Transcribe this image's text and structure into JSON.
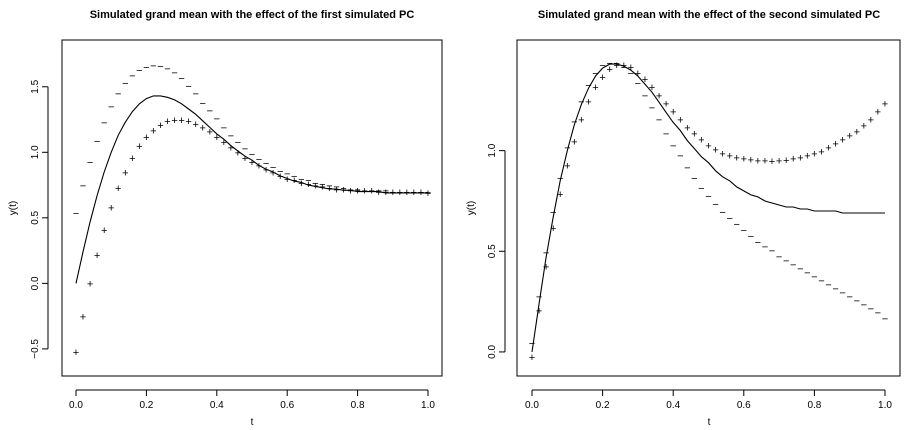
{
  "chart_data": [
    {
      "type": "line",
      "title": "Simulated grand mean with the effect of the first simulated PC",
      "xlabel": "t",
      "ylabel": "y(t)",
      "xlim": [
        0,
        1
      ],
      "ylim": [
        -0.6,
        1.75
      ],
      "xticks": [
        0,
        0.2,
        0.4,
        0.6,
        0.8,
        1.0
      ],
      "xtick_labels": [
        "0.0",
        "0.2",
        "0.4",
        "0.6",
        "0.8",
        "1.0"
      ],
      "yticks": [
        -0.5,
        0,
        0.5,
        1.0,
        1.5
      ],
      "ytick_labels": [
        "−0.5",
        "0.0",
        "0.5",
        "1.0",
        "1.5"
      ],
      "series": [
        {
          "role": "mean",
          "style": "line",
          "x": [
            0,
            0.02,
            0.04,
            0.06,
            0.08,
            0.1,
            0.12,
            0.14,
            0.16,
            0.18,
            0.2,
            0.22,
            0.24,
            0.26,
            0.28,
            0.3,
            0.32,
            0.34,
            0.36,
            0.38,
            0.4,
            0.42,
            0.44,
            0.46,
            0.48,
            0.5,
            0.52,
            0.54,
            0.56,
            0.58,
            0.6,
            0.62,
            0.64,
            0.66,
            0.68,
            0.7,
            0.72,
            0.74,
            0.76,
            0.78,
            0.8,
            0.82,
            0.84,
            0.86,
            0.88,
            0.9,
            0.92,
            0.94,
            0.96,
            0.98,
            1.0
          ],
          "y": [
            0.0,
            0.24,
            0.47,
            0.67,
            0.85,
            1.0,
            1.13,
            1.23,
            1.31,
            1.37,
            1.41,
            1.43,
            1.43,
            1.42,
            1.4,
            1.37,
            1.33,
            1.29,
            1.24,
            1.19,
            1.14,
            1.1,
            1.05,
            1.01,
            0.97,
            0.94,
            0.9,
            0.87,
            0.85,
            0.82,
            0.8,
            0.78,
            0.77,
            0.75,
            0.74,
            0.73,
            0.72,
            0.72,
            0.71,
            0.71,
            0.7,
            0.7,
            0.7,
            0.7,
            0.69,
            0.69,
            0.69,
            0.69,
            0.69,
            0.69,
            0.69
          ]
        },
        {
          "role": "mean-minus",
          "style": "marker",
          "marker_text": "−",
          "x": [
            0,
            0.02,
            0.04,
            0.06,
            0.08,
            0.1,
            0.12,
            0.14,
            0.16,
            0.18,
            0.2,
            0.22,
            0.24,
            0.26,
            0.28,
            0.3,
            0.32,
            0.34,
            0.36,
            0.38,
            0.4,
            0.42,
            0.44,
            0.46,
            0.48,
            0.5,
            0.52,
            0.54,
            0.56,
            0.58,
            0.6,
            0.62,
            0.64,
            0.66,
            0.68,
            0.7,
            0.72,
            0.74,
            0.76,
            0.78,
            0.8,
            0.82,
            0.84,
            0.86,
            0.88,
            0.9,
            0.92,
            0.94,
            0.96,
            0.98,
            1.0
          ],
          "y": [
            0.53,
            0.74,
            0.92,
            1.08,
            1.22,
            1.34,
            1.44,
            1.52,
            1.58,
            1.62,
            1.645,
            1.655,
            1.65,
            1.63,
            1.6,
            1.56,
            1.5,
            1.44,
            1.37,
            1.31,
            1.25,
            1.18,
            1.12,
            1.07,
            1.02,
            0.98,
            0.94,
            0.91,
            0.88,
            0.85,
            0.83,
            0.81,
            0.79,
            0.78,
            0.76,
            0.75,
            0.74,
            0.73,
            0.72,
            0.71,
            0.71,
            0.7,
            0.7,
            0.7,
            0.7,
            0.69,
            0.69,
            0.69,
            0.69,
            0.69,
            0.69
          ]
        },
        {
          "role": "mean-plus",
          "style": "marker",
          "marker_text": "+",
          "x": [
            0,
            0.02,
            0.04,
            0.06,
            0.08,
            0.1,
            0.12,
            0.14,
            0.16,
            0.18,
            0.2,
            0.22,
            0.24,
            0.26,
            0.28,
            0.3,
            0.32,
            0.34,
            0.36,
            0.38,
            0.4,
            0.42,
            0.44,
            0.46,
            0.48,
            0.5,
            0.52,
            0.54,
            0.56,
            0.58,
            0.6,
            0.62,
            0.64,
            0.66,
            0.68,
            0.7,
            0.72,
            0.74,
            0.76,
            0.78,
            0.8,
            0.82,
            0.84,
            0.86,
            0.88,
            0.9,
            0.92,
            0.94,
            0.96,
            0.98,
            1.0
          ],
          "y": [
            -0.53,
            -0.26,
            -0.01,
            0.21,
            0.4,
            0.57,
            0.72,
            0.84,
            0.95,
            1.04,
            1.11,
            1.16,
            1.2,
            1.23,
            1.24,
            1.24,
            1.23,
            1.21,
            1.18,
            1.15,
            1.11,
            1.07,
            1.03,
            0.99,
            0.95,
            0.92,
            0.89,
            0.86,
            0.84,
            0.81,
            0.79,
            0.78,
            0.76,
            0.75,
            0.74,
            0.73,
            0.72,
            0.71,
            0.71,
            0.7,
            0.7,
            0.7,
            0.7,
            0.69,
            0.69,
            0.69,
            0.69,
            0.69,
            0.69,
            0.69,
            0.68
          ]
        }
      ]
    },
    {
      "type": "line",
      "title": "Simulated grand mean with the effect of the second simulated PC",
      "xlabel": "t",
      "ylabel": "y(t)",
      "xlim": [
        0,
        1
      ],
      "ylim": [
        -0.05,
        1.48
      ],
      "xticks": [
        0,
        0.2,
        0.4,
        0.6,
        0.8,
        1.0
      ],
      "xtick_labels": [
        "0.0",
        "0.2",
        "0.4",
        "0.6",
        "0.8",
        "1.0"
      ],
      "yticks": [
        0,
        0.5,
        1.0
      ],
      "ytick_labels": [
        "0.0",
        "0.5",
        "1.0"
      ],
      "series": [
        {
          "role": "mean",
          "style": "line",
          "x": [
            0,
            0.02,
            0.04,
            0.06,
            0.08,
            0.1,
            0.12,
            0.14,
            0.16,
            0.18,
            0.2,
            0.22,
            0.24,
            0.26,
            0.28,
            0.3,
            0.32,
            0.34,
            0.36,
            0.38,
            0.4,
            0.42,
            0.44,
            0.46,
            0.48,
            0.5,
            0.52,
            0.54,
            0.56,
            0.58,
            0.6,
            0.62,
            0.64,
            0.66,
            0.68,
            0.7,
            0.72,
            0.74,
            0.76,
            0.78,
            0.8,
            0.82,
            0.84,
            0.86,
            0.88,
            0.9,
            0.92,
            0.94,
            0.96,
            0.98,
            1.0
          ],
          "y": [
            0.0,
            0.24,
            0.47,
            0.67,
            0.85,
            1.0,
            1.13,
            1.23,
            1.31,
            1.37,
            1.41,
            1.43,
            1.43,
            1.42,
            1.4,
            1.37,
            1.33,
            1.29,
            1.24,
            1.19,
            1.14,
            1.1,
            1.05,
            1.01,
            0.97,
            0.94,
            0.9,
            0.87,
            0.85,
            0.82,
            0.8,
            0.78,
            0.77,
            0.75,
            0.74,
            0.73,
            0.72,
            0.72,
            0.71,
            0.71,
            0.7,
            0.7,
            0.7,
            0.7,
            0.69,
            0.69,
            0.69,
            0.69,
            0.69,
            0.69,
            0.69
          ]
        },
        {
          "role": "mean-minus",
          "style": "marker",
          "marker_text": "−",
          "x": [
            0,
            0.02,
            0.04,
            0.06,
            0.08,
            0.1,
            0.12,
            0.14,
            0.16,
            0.18,
            0.2,
            0.22,
            0.24,
            0.26,
            0.28,
            0.3,
            0.32,
            0.34,
            0.36,
            0.38,
            0.4,
            0.42,
            0.44,
            0.46,
            0.48,
            0.5,
            0.52,
            0.54,
            0.56,
            0.58,
            0.6,
            0.62,
            0.64,
            0.66,
            0.68,
            0.7,
            0.72,
            0.74,
            0.76,
            0.78,
            0.8,
            0.82,
            0.84,
            0.86,
            0.88,
            0.9,
            0.92,
            0.94,
            0.96,
            0.98,
            1.0
          ],
          "y": [
            0.04,
            0.27,
            0.49,
            0.69,
            0.86,
            1.01,
            1.14,
            1.24,
            1.32,
            1.38,
            1.42,
            1.43,
            1.43,
            1.41,
            1.38,
            1.33,
            1.27,
            1.21,
            1.15,
            1.08,
            1.02,
            0.97,
            0.91,
            0.86,
            0.81,
            0.77,
            0.73,
            0.69,
            0.66,
            0.63,
            0.6,
            0.57,
            0.54,
            0.52,
            0.5,
            0.47,
            0.45,
            0.43,
            0.41,
            0.39,
            0.37,
            0.35,
            0.33,
            0.31,
            0.29,
            0.27,
            0.25,
            0.23,
            0.21,
            0.19,
            0.16
          ]
        },
        {
          "role": "mean-plus",
          "style": "marker",
          "marker_text": "+",
          "x": [
            0,
            0.02,
            0.04,
            0.06,
            0.08,
            0.1,
            0.12,
            0.14,
            0.16,
            0.18,
            0.2,
            0.22,
            0.24,
            0.26,
            0.28,
            0.3,
            0.32,
            0.34,
            0.36,
            0.38,
            0.4,
            0.42,
            0.44,
            0.46,
            0.48,
            0.5,
            0.52,
            0.54,
            0.56,
            0.58,
            0.6,
            0.62,
            0.64,
            0.66,
            0.68,
            0.7,
            0.72,
            0.74,
            0.76,
            0.78,
            0.8,
            0.82,
            0.84,
            0.86,
            0.88,
            0.9,
            0.92,
            0.94,
            0.96,
            0.98,
            1.0
          ],
          "y": [
            -0.03,
            0.2,
            0.42,
            0.61,
            0.78,
            0.92,
            1.04,
            1.15,
            1.24,
            1.31,
            1.36,
            1.4,
            1.42,
            1.42,
            1.41,
            1.38,
            1.35,
            1.31,
            1.27,
            1.23,
            1.19,
            1.15,
            1.11,
            1.08,
            1.05,
            1.02,
            1.0,
            0.98,
            0.97,
            0.96,
            0.955,
            0.95,
            0.947,
            0.945,
            0.944,
            0.945,
            0.948,
            0.955,
            0.96,
            0.97,
            0.98,
            0.99,
            1.01,
            1.03,
            1.05,
            1.07,
            1.09,
            1.12,
            1.15,
            1.19,
            1.23
          ]
        }
      ]
    }
  ]
}
